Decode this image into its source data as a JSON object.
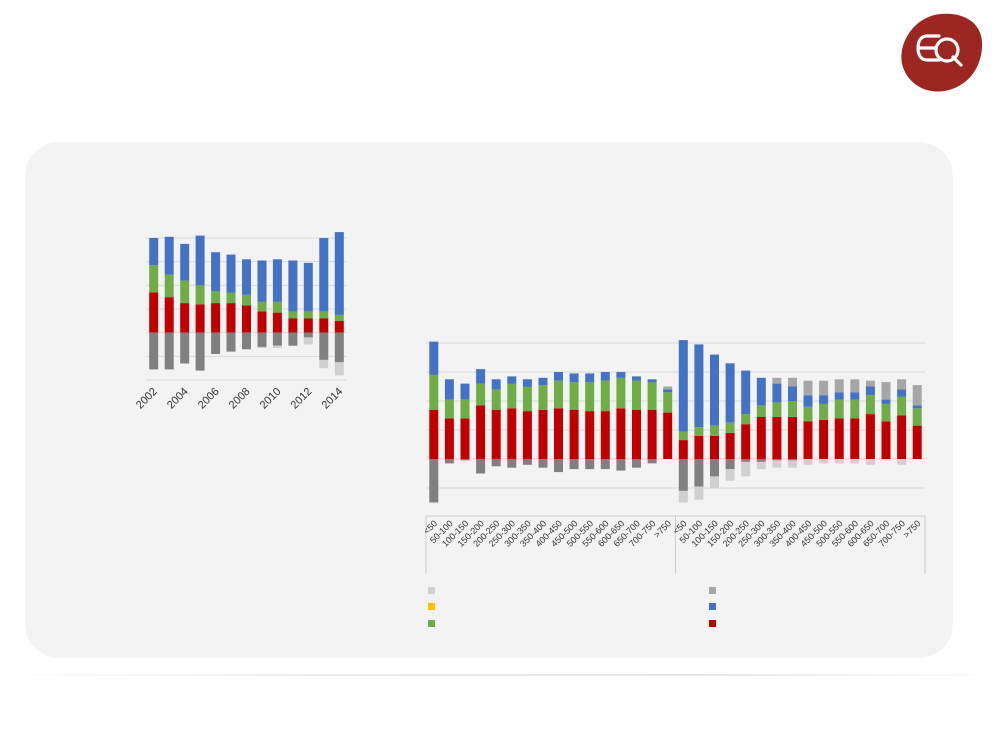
{
  "brand": {
    "color": "#9b2622"
  },
  "colors": {
    "red": "#c00000",
    "green": "#70ad47",
    "blue": "#4472c4",
    "gray": "#a6a6a6",
    "darkgray": "#808080",
    "lightgray": "#d0d0d0",
    "yellow": "#ffc000",
    "panel": "#f3f3f3"
  },
  "legend": {
    "items": [
      {
        "color": "lightgray",
        "label": ""
      },
      {
        "color": "yellow",
        "label": ""
      },
      {
        "color": "green",
        "label": ""
      },
      {
        "color": "gray",
        "label": ""
      },
      {
        "color": "blue",
        "label": ""
      },
      {
        "color": "red",
        "label": ""
      }
    ]
  },
  "chart_data": [
    {
      "type": "bar",
      "stacked": true,
      "categories": [
        "2002",
        "2003",
        "2004",
        "2005",
        "2006",
        "2007",
        "2008",
        "2009",
        "2010",
        "2011",
        "2012",
        "2013",
        "2014"
      ],
      "tick_labels": [
        "2002",
        "2004",
        "2006",
        "2008",
        "2010",
        "2012",
        "2014"
      ],
      "ylim": [
        -2,
        4
      ],
      "grid": true,
      "series": [
        {
          "color": "red",
          "values": [
            1.7,
            1.5,
            1.25,
            1.2,
            1.25,
            1.25,
            1.15,
            0.9,
            0.85,
            0.6,
            0.6,
            0.6,
            0.5
          ]
        },
        {
          "color": "green",
          "values": [
            1.15,
            0.95,
            0.95,
            0.8,
            0.5,
            0.45,
            0.45,
            0.4,
            0.45,
            0.3,
            0.3,
            0.3,
            0.25
          ]
        },
        {
          "color": "blue",
          "values": [
            1.15,
            1.6,
            1.55,
            2.1,
            1.65,
            1.6,
            1.5,
            1.75,
            1.8,
            2.15,
            2.05,
            3.1,
            3.5
          ]
        },
        {
          "color": "darkgray",
          "values": [
            -1.55,
            -1.55,
            -1.3,
            -1.6,
            -0.9,
            -0.8,
            -0.7,
            -0.6,
            -0.55,
            -0.55,
            -0.2,
            -1.15,
            -1.25
          ]
        },
        {
          "color": "lightgray",
          "values": [
            0,
            0,
            0,
            0,
            0,
            0,
            0,
            -0.05,
            -0.1,
            0,
            -0.3,
            -0.35,
            -0.55
          ]
        }
      ]
    },
    {
      "type": "bar",
      "stacked": true,
      "groups": [
        {
          "categories": [
            "<50",
            "50-100",
            "100-150",
            "150-200",
            "200-250",
            "250-300",
            "300-350",
            "350-400",
            "400-450",
            "450-500",
            "500-550",
            "550-600",
            "600-650",
            "650-700",
            "700-750",
            ">750"
          ],
          "series": [
            {
              "color": "red",
              "values": [
                1.7,
                1.4,
                1.4,
                1.85,
                1.7,
                1.75,
                1.65,
                1.7,
                1.75,
                1.7,
                1.65,
                1.65,
                1.75,
                1.7,
                1.7,
                1.6
              ]
            },
            {
              "color": "green",
              "values": [
                1.2,
                0.65,
                0.65,
                0.75,
                0.7,
                0.85,
                0.85,
                0.85,
                0.95,
                0.95,
                1.0,
                1.05,
                1.05,
                1.0,
                0.95,
                0.7
              ]
            },
            {
              "color": "blue",
              "values": [
                1.15,
                0.7,
                0.55,
                0.5,
                0.35,
                0.25,
                0.25,
                0.25,
                0.3,
                0.3,
                0.3,
                0.3,
                0.2,
                0.15,
                0.1,
                0.1
              ]
            },
            {
              "color": "gray",
              "values": [
                0,
                0,
                0,
                0,
                0,
                0,
                0,
                0,
                0,
                0,
                0,
                0,
                0,
                0,
                0,
                0.1
              ]
            },
            {
              "color": "darkgray",
              "values": [
                -1.5,
                -0.15,
                -0.05,
                -0.5,
                -0.25,
                -0.3,
                -0.2,
                -0.3,
                -0.45,
                -0.35,
                -0.35,
                -0.35,
                -0.4,
                -0.3,
                -0.15,
                0
              ]
            },
            {
              "color": "lightgray",
              "values": [
                0,
                0,
                0,
                0,
                0,
                0,
                0,
                0,
                0,
                0,
                0,
                0,
                0,
                0,
                0,
                0
              ]
            }
          ]
        },
        {
          "categories": [
            "<50",
            "50-100",
            "100-150",
            "150-200",
            "200-250",
            "250-300",
            "300-350",
            "350-400",
            "400-450",
            "450-500",
            "500-550",
            "550-600",
            "600-650",
            "650-700",
            "700-750",
            ">750"
          ],
          "series": [
            {
              "color": "red",
              "values": [
                0.65,
                0.8,
                0.8,
                0.9,
                1.2,
                1.45,
                1.45,
                1.45,
                1.3,
                1.35,
                1.4,
                1.4,
                1.55,
                1.3,
                1.5,
                1.15
              ]
            },
            {
              "color": "green",
              "values": [
                0.3,
                0.3,
                0.35,
                0.35,
                0.35,
                0.4,
                0.5,
                0.55,
                0.5,
                0.55,
                0.65,
                0.65,
                0.65,
                0.6,
                0.65,
                0.6
              ]
            },
            {
              "color": "blue",
              "values": [
                3.15,
                2.85,
                2.45,
                2.05,
                1.5,
                0.95,
                0.65,
                0.5,
                0.4,
                0.3,
                0.25,
                0.25,
                0.3,
                0.15,
                0.25,
                0.1
              ]
            },
            {
              "color": "gray",
              "values": [
                0,
                0,
                0,
                0,
                0,
                0,
                0.2,
                0.3,
                0.5,
                0.5,
                0.45,
                0.45,
                0.2,
                0.6,
                0.35,
                0.7
              ]
            },
            {
              "color": "darkgray",
              "values": [
                -1.1,
                -0.95,
                -0.6,
                -0.35,
                -0.1,
                -0.1,
                -0.05,
                -0.05,
                0,
                0,
                0,
                0,
                0,
                0,
                0,
                0
              ]
            },
            {
              "color": "lightgray",
              "values": [
                -0.4,
                -0.45,
                -0.4,
                -0.4,
                -0.5,
                -0.25,
                -0.25,
                -0.25,
                -0.2,
                -0.15,
                -0.15,
                -0.15,
                -0.2,
                -0.05,
                -0.2,
                0
              ]
            }
          ]
        }
      ],
      "ylim": [
        -1.5,
        4
      ],
      "grid": true
    }
  ]
}
